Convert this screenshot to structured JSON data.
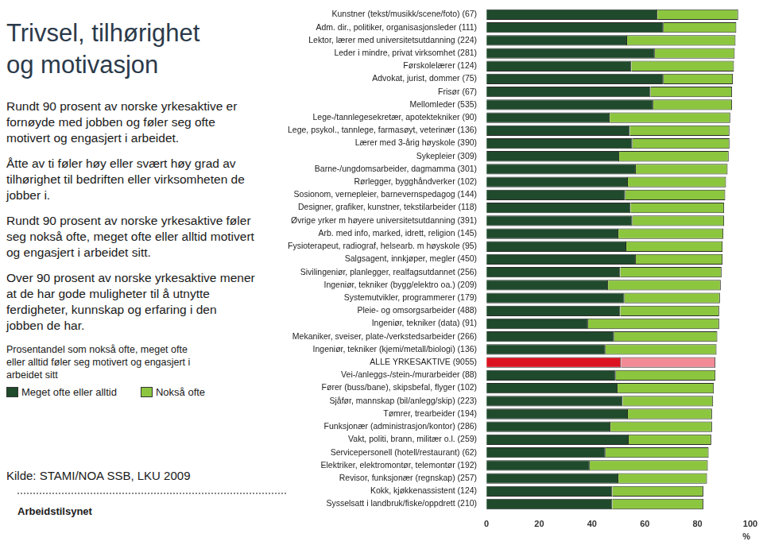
{
  "slide": {
    "title": [
      "Trivsel, tilhørighet",
      "og motivasjon"
    ],
    "paragraphs": [
      "Rundt 90 prosent av norske yrkesaktive er fornøyde med jobben og føler seg ofte motivert og engasjert i arbeidet.",
      "Åtte av ti føler høy eller svært høy grad av tilhørighet til bedriften eller virksomheten de jobber i.",
      "Rundt 90 prosent av norske yrkesaktive føler seg nokså ofte, meget ofte eller alltid motivert og engasjert i arbeidet sitt.",
      "Over 90 prosent av norske yrkesaktive mener at de har gode muligheter til å utnytte ferdigheter, kunnskap og erfaring i den jobben de har."
    ],
    "caption": "Prosentandel som nokså ofte, meget ofte eller alltid føler seg motivert og engasjert i arbeidet sitt",
    "source": "Kilde: STAMI/NOA SSB, LKU 2009",
    "organization": "Arbeidstilsynet"
  },
  "chart_data": {
    "type": "bar",
    "orientation": "horizontal",
    "stacked": true,
    "grid": false,
    "xlabel": "%",
    "xlim": [
      0,
      100
    ],
    "xticks": [
      0,
      20,
      40,
      60,
      80,
      100
    ],
    "categories": [
      "Kunstner (tekst/musikk/scene/foto) (67)",
      "Adm. dir., politiker, organisasjonsleder (111)",
      "Lektor, lærer med universitetsutdanning (224)",
      "Leder i mindre, privat virksomhet (281)",
      "Førskolelærer (124)",
      "Advokat, jurist, dommer (75)",
      "Frisør (67)",
      "Mellomleder (535)",
      "Lege-/tannlegesekretær, apotektekniker (90)",
      "Lege, psykol., tannlege, farmasøyt, veterinær (136)",
      "Lærer med 3-årig høyskole (390)",
      "Sykepleier (309)",
      "Barne-/ungdomsarbeider, dagmamma (301)",
      "Rørlegger, bygghåndverker (102)",
      "Sosionom, vernepleier, barnevernspedagog (144)",
      "Designer, grafiker, kunstner, tekstilarbeider (118)",
      "Øvrige yrker m høyere universitetsutdanning (391)",
      "Arb. med info, marked, idrett, religion (145)",
      "Fysioterapeut, radiograf, helsearb. m høyskole (95)",
      "Salgsagent, innkjøper, megler (450)",
      "Sivilingeniør, planlegger, realfagsutdannet (256)",
      "Ingeniør, tekniker (bygg/elektro oa.) (209)",
      "Systemutvikler, programmerer (179)",
      "Pleie- og omsorgsarbeider (488)",
      "Ingeniør, tekniker (data) (91)",
      "Mekaniker, sveiser, plate-/verkstedsarbeider (266)",
      "Ingeniør, tekniker (kjemi/metall/biologi) (136)",
      "ALLE YRKESAKTIVE (9055)",
      "Vei-/anleggs-/stein-/murarbeider (88)",
      "Fører (buss/bane), skipsbefal, flyger (102)",
      "Sjåfør, mannskap (bil/anlegg/skip) (223)",
      "Tømrer, trearbeider (194)",
      "Funksjonær (administrasjon/kontor) (286)",
      "Vakt, politi, brann, militær o.l. (259)",
      "Servicepersonell (hotell/restaurant) (62)",
      "Elektriker, elektromontør, telemontør (192)",
      "Revisor, funksjonær (regnskap) (257)",
      "Kokk, kjøkkenassistent (124)",
      "Sysselsatt i landbruk/fiske/oppdrett (210)"
    ],
    "series": [
      {
        "name": "Meget ofte eller alltid",
        "color": "#1f4a2c",
        "colors": [
          "#1f4a2c",
          "#1f4a2c",
          "#1f4a2c",
          "#1f4a2c",
          "#1f4a2c",
          "#1f4a2c",
          "#1f4a2c",
          "#1f4a2c",
          "#1f4a2c",
          "#1f4a2c",
          "#1f4a2c",
          "#1f4a2c",
          "#1f4a2c",
          "#1f4a2c",
          "#1f4a2c",
          "#1f4a2c",
          "#1f4a2c",
          "#1f4a2c",
          "#1f4a2c",
          "#1f4a2c",
          "#1f4a2c",
          "#1f4a2c",
          "#1f4a2c",
          "#1f4a2c",
          "#1f4a2c",
          "#1f4a2c",
          "#1f4a2c",
          "#dc1421",
          "#1f4a2c",
          "#1f4a2c",
          "#1f4a2c",
          "#1f4a2c",
          "#1f4a2c",
          "#1f4a2c",
          "#1f4a2c",
          "#1f4a2c",
          "#1f4a2c",
          "#1f4a2c",
          "#1f4a2c"
        ],
        "values": [
          64.8,
          67.1,
          53.3,
          63.8,
          54.9,
          67.1,
          62.2,
          63.2,
          46.7,
          54.3,
          55.3,
          50.3,
          56.6,
          53.6,
          52.6,
          54.6,
          55.3,
          50.0,
          53.0,
          56.6,
          50.7,
          46.1,
          52.3,
          50.7,
          38.5,
          48.4,
          45.1,
          51.0,
          49.0,
          49.7,
          51.6,
          53.6,
          47.0,
          53.9,
          45.1,
          39.1,
          50.0,
          47.7,
          47.7
        ]
      },
      {
        "name": "Nokså ofte",
        "color": "#8cc63f",
        "colors": [
          "#8cc63f",
          "#8cc63f",
          "#8cc63f",
          "#8cc63f",
          "#8cc63f",
          "#8cc63f",
          "#8cc63f",
          "#8cc63f",
          "#8cc63f",
          "#8cc63f",
          "#8cc63f",
          "#8cc63f",
          "#8cc63f",
          "#8cc63f",
          "#8cc63f",
          "#8cc63f",
          "#8cc63f",
          "#8cc63f",
          "#8cc63f",
          "#8cc63f",
          "#8cc63f",
          "#8cc63f",
          "#8cc63f",
          "#8cc63f",
          "#8cc63f",
          "#8cc63f",
          "#8cc63f",
          "#f28a96",
          "#8cc63f",
          "#8cc63f",
          "#8cc63f",
          "#8cc63f",
          "#8cc63f",
          "#8cc63f",
          "#8cc63f",
          "#8cc63f",
          "#8cc63f",
          "#8cc63f",
          "#8cc63f"
        ],
        "values": [
          30.6,
          27.6,
          41.1,
          30.3,
          38.9,
          26.3,
          30.9,
          29.9,
          45.7,
          37.8,
          36.8,
          41.5,
          34.8,
          37.2,
          37.9,
          35.5,
          34.8,
          39.8,
          36.5,
          32.9,
          38.4,
          42.7,
          36.2,
          37.5,
          49.7,
          39.1,
          42.1,
          35.8,
          37.8,
          36.5,
          34.3,
          31.9,
          38.5,
          31.3,
          39.1,
          44.8,
          33.6,
          34.5,
          34.5
        ]
      }
    ]
  }
}
